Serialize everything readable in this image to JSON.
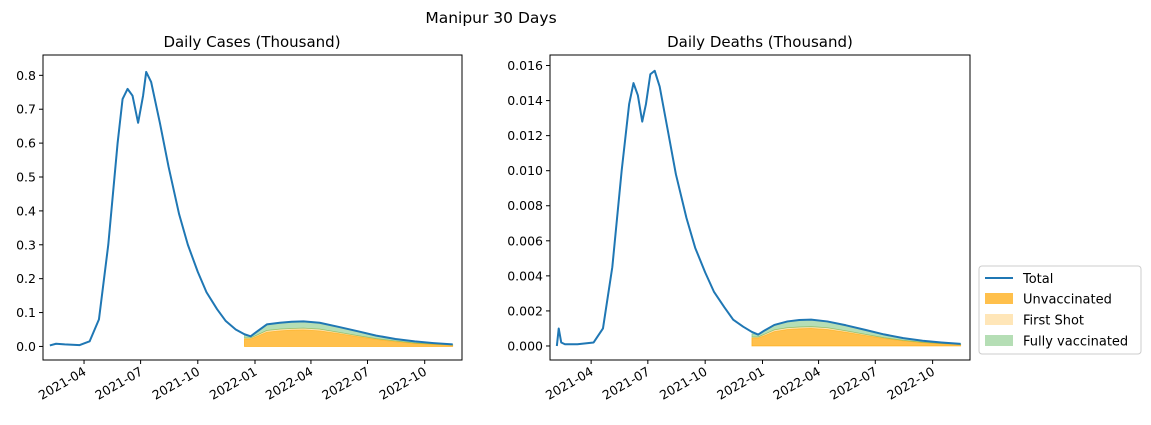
{
  "figure": {
    "suptitle": "Manipur 30 Days"
  },
  "legend": {
    "placement": "right-bottom",
    "entries": [
      {
        "label": "Total",
        "kind": "line",
        "color": "#1f77b4"
      },
      {
        "label": "Unvaccinated",
        "kind": "patch",
        "color": "#ffa500",
        "alpha": 0.7
      },
      {
        "label": "First Shot",
        "kind": "patch",
        "color": "#ffc04d",
        "alpha": 0.4
      },
      {
        "label": "Fully vaccinated",
        "kind": "patch",
        "color": "#2ca02c",
        "alpha": 0.35
      }
    ]
  },
  "chart_data": [
    {
      "type": "area",
      "title": "Daily Cases (Thousand)",
      "xlabel": "",
      "ylabel": "",
      "xlim": [
        "2021-01-25",
        "2022-11-30"
      ],
      "ylim": [
        -0.04,
        0.86
      ],
      "yticks": [
        0.0,
        0.1,
        0.2,
        0.3,
        0.4,
        0.5,
        0.6,
        0.7,
        0.8
      ],
      "ytick_labels": [
        "0.0",
        "0.1",
        "0.2",
        "0.3",
        "0.4",
        "0.5",
        "0.6",
        "0.7",
        "0.8"
      ],
      "xticks": [
        "2021-04-01",
        "2021-07-01",
        "2021-10-01",
        "2022-01-01",
        "2022-04-01",
        "2022-07-01",
        "2022-10-01"
      ],
      "xtick_labels": [
        "2021-04",
        "2021-07",
        "2021-10",
        "2022-01",
        "2022-04",
        "2022-07",
        "2022-10"
      ],
      "grid": false,
      "series": [
        {
          "name": "Total",
          "kind": "line",
          "color": "#1f77b4",
          "x": [
            "2021-02-05",
            "2021-02-15",
            "2021-03-01",
            "2021-03-25",
            "2021-04-10",
            "2021-04-25",
            "2021-05-10",
            "2021-05-25",
            "2021-06-02",
            "2021-06-10",
            "2021-06-18",
            "2021-06-27",
            "2021-07-05",
            "2021-07-10",
            "2021-07-18",
            "2021-08-01",
            "2021-08-15",
            "2021-09-01",
            "2021-09-15",
            "2021-10-01",
            "2021-10-15",
            "2021-11-01",
            "2021-11-15",
            "2021-12-01",
            "2021-12-15",
            "2021-12-25",
            "2022-01-05",
            "2022-01-20",
            "2022-02-10",
            "2022-03-01",
            "2022-03-20",
            "2022-04-15",
            "2022-05-15",
            "2022-06-15",
            "2022-07-15",
            "2022-08-15",
            "2022-09-15",
            "2022-10-15",
            "2022-11-15"
          ],
          "y": [
            0.003,
            0.008,
            0.006,
            0.004,
            0.015,
            0.08,
            0.3,
            0.6,
            0.73,
            0.76,
            0.74,
            0.66,
            0.74,
            0.81,
            0.78,
            0.66,
            0.53,
            0.39,
            0.3,
            0.22,
            0.16,
            0.11,
            0.075,
            0.05,
            0.036,
            0.03,
            0.045,
            0.065,
            0.07,
            0.073,
            0.074,
            0.07,
            0.058,
            0.045,
            0.032,
            0.022,
            0.015,
            0.01,
            0.006
          ]
        },
        {
          "name": "Unvaccinated",
          "kind": "area",
          "color": "#ffa500",
          "alpha": 0.7,
          "x": [
            "2021-12-15",
            "2021-12-25",
            "2022-01-05",
            "2022-01-20",
            "2022-02-10",
            "2022-03-01",
            "2022-03-20",
            "2022-04-15",
            "2022-05-15",
            "2022-06-15",
            "2022-07-15",
            "2022-08-15",
            "2022-09-15",
            "2022-10-15",
            "2022-11-15"
          ],
          "y": [
            0.022,
            0.022,
            0.03,
            0.042,
            0.046,
            0.048,
            0.049,
            0.046,
            0.038,
            0.029,
            0.021,
            0.014,
            0.009,
            0.006,
            0.004
          ]
        },
        {
          "name": "First Shot",
          "kind": "area",
          "color": "#ffc04d",
          "alpha": 0.4,
          "x": [
            "2021-12-15",
            "2021-12-25",
            "2022-01-05",
            "2022-01-20",
            "2022-02-10",
            "2022-03-01",
            "2022-03-20",
            "2022-04-15",
            "2022-05-15",
            "2022-06-15",
            "2022-07-15",
            "2022-08-15",
            "2022-09-15",
            "2022-10-15",
            "2022-11-15"
          ],
          "y": [
            0.003,
            0.003,
            0.004,
            0.005,
            0.005,
            0.005,
            0.005,
            0.005,
            0.004,
            0.003,
            0.002,
            0.002,
            0.001,
            0.001,
            0.0005
          ]
        },
        {
          "name": "Fully vaccinated",
          "kind": "area",
          "color": "#2ca02c",
          "alpha": 0.35,
          "x": [
            "2021-12-15",
            "2021-12-25",
            "2022-01-05",
            "2022-01-20",
            "2022-02-10",
            "2022-03-01",
            "2022-03-20",
            "2022-04-15",
            "2022-05-15",
            "2022-06-15",
            "2022-07-15",
            "2022-08-15",
            "2022-09-15",
            "2022-10-15",
            "2022-11-15"
          ],
          "y": [
            0.01,
            0.006,
            0.011,
            0.018,
            0.019,
            0.02,
            0.02,
            0.019,
            0.016,
            0.013,
            0.009,
            0.006,
            0.005,
            0.003,
            0.0015
          ]
        }
      ]
    },
    {
      "type": "area",
      "title": "Daily Deaths (Thousand)",
      "xlabel": "",
      "ylabel": "",
      "xlim": [
        "2021-01-25",
        "2022-11-30"
      ],
      "ylim": [
        -0.0008,
        0.0166
      ],
      "yticks": [
        0.0,
        0.002,
        0.004,
        0.006,
        0.008,
        0.01,
        0.012,
        0.014,
        0.016
      ],
      "ytick_labels": [
        "0.000",
        "0.002",
        "0.004",
        "0.006",
        "0.008",
        "0.010",
        "0.012",
        "0.014",
        "0.016"
      ],
      "xticks": [
        "2021-04-01",
        "2021-07-01",
        "2021-10-01",
        "2022-01-01",
        "2022-04-01",
        "2022-07-01",
        "2022-10-01"
      ],
      "xtick_labels": [
        "2021-04",
        "2021-07",
        "2021-10",
        "2022-01",
        "2022-04",
        "2022-07",
        "2022-10"
      ],
      "grid": false,
      "series": [
        {
          "name": "Total",
          "kind": "line",
          "color": "#1f77b4",
          "x": [
            "2021-02-05",
            "2021-02-08",
            "2021-02-12",
            "2021-02-18",
            "2021-03-10",
            "2021-04-05",
            "2021-04-20",
            "2021-05-05",
            "2021-05-20",
            "2021-06-01",
            "2021-06-08",
            "2021-06-15",
            "2021-06-22",
            "2021-06-28",
            "2021-07-05",
            "2021-07-12",
            "2021-07-20",
            "2021-08-01",
            "2021-08-15",
            "2021-09-01",
            "2021-09-15",
            "2021-10-01",
            "2021-10-15",
            "2021-11-01",
            "2021-11-15",
            "2021-12-01",
            "2021-12-15",
            "2021-12-25",
            "2022-01-05",
            "2022-01-20",
            "2022-02-10",
            "2022-03-01",
            "2022-03-20",
            "2022-04-15",
            "2022-05-15",
            "2022-06-15",
            "2022-07-15",
            "2022-08-15",
            "2022-09-15",
            "2022-10-15",
            "2022-11-15"
          ],
          "y": [
            0.0,
            0.001,
            0.0002,
            0.0001,
            0.0001,
            0.0002,
            0.001,
            0.0045,
            0.01,
            0.0138,
            0.015,
            0.0143,
            0.0128,
            0.0138,
            0.0155,
            0.0157,
            0.0148,
            0.0125,
            0.0098,
            0.0073,
            0.0056,
            0.0042,
            0.0031,
            0.0022,
            0.0015,
            0.0011,
            0.0008,
            0.00065,
            0.0009,
            0.0012,
            0.0014,
            0.00148,
            0.0015,
            0.0014,
            0.00118,
            0.00092,
            0.00066,
            0.00045,
            0.0003,
            0.0002,
            0.00012
          ]
        },
        {
          "name": "Unvaccinated",
          "kind": "area",
          "color": "#ffa500",
          "alpha": 0.7,
          "x": [
            "2021-12-15",
            "2021-12-25",
            "2022-01-05",
            "2022-01-20",
            "2022-02-10",
            "2022-03-01",
            "2022-03-20",
            "2022-04-15",
            "2022-05-15",
            "2022-06-15",
            "2022-07-15",
            "2022-08-15",
            "2022-09-15",
            "2022-10-15",
            "2022-11-15"
          ],
          "y": [
            0.00045,
            0.00045,
            0.0006,
            0.00082,
            0.00094,
            0.00098,
            0.001,
            0.00094,
            0.00078,
            0.0006,
            0.00043,
            0.00029,
            0.00019,
            0.00013,
            8e-05
          ]
        },
        {
          "name": "First Shot",
          "kind": "area",
          "color": "#ffc04d",
          "alpha": 0.4,
          "x": [
            "2021-12-15",
            "2021-12-25",
            "2022-01-05",
            "2022-01-20",
            "2022-02-10",
            "2022-03-01",
            "2022-03-20",
            "2022-04-15",
            "2022-05-15",
            "2022-06-15",
            "2022-07-15",
            "2022-08-15",
            "2022-09-15",
            "2022-10-15",
            "2022-11-15"
          ],
          "y": [
            6e-05,
            6e-05,
            8e-05,
            0.0001,
            0.0001,
            0.0001,
            0.0001,
            0.0001,
            8e-05,
            6e-05,
            4e-05,
            3e-05,
            2e-05,
            1e-05,
            1e-05
          ]
        },
        {
          "name": "Fully vaccinated",
          "kind": "area",
          "color": "#2ca02c",
          "alpha": 0.35,
          "x": [
            "2021-12-15",
            "2021-12-25",
            "2022-01-05",
            "2022-01-20",
            "2022-02-10",
            "2022-03-01",
            "2022-03-20",
            "2022-04-15",
            "2022-05-15",
            "2022-06-15",
            "2022-07-15",
            "2022-08-15",
            "2022-09-15",
            "2022-10-15",
            "2022-11-15"
          ],
          "y": [
            0.00019,
            0.00014,
            0.00022,
            0.00028,
            0.00036,
            0.0004,
            0.0004,
            0.00036,
            0.00032,
            0.00026,
            0.00019,
            0.00013,
            9e-05,
            6e-05,
            3e-05
          ]
        }
      ]
    }
  ]
}
